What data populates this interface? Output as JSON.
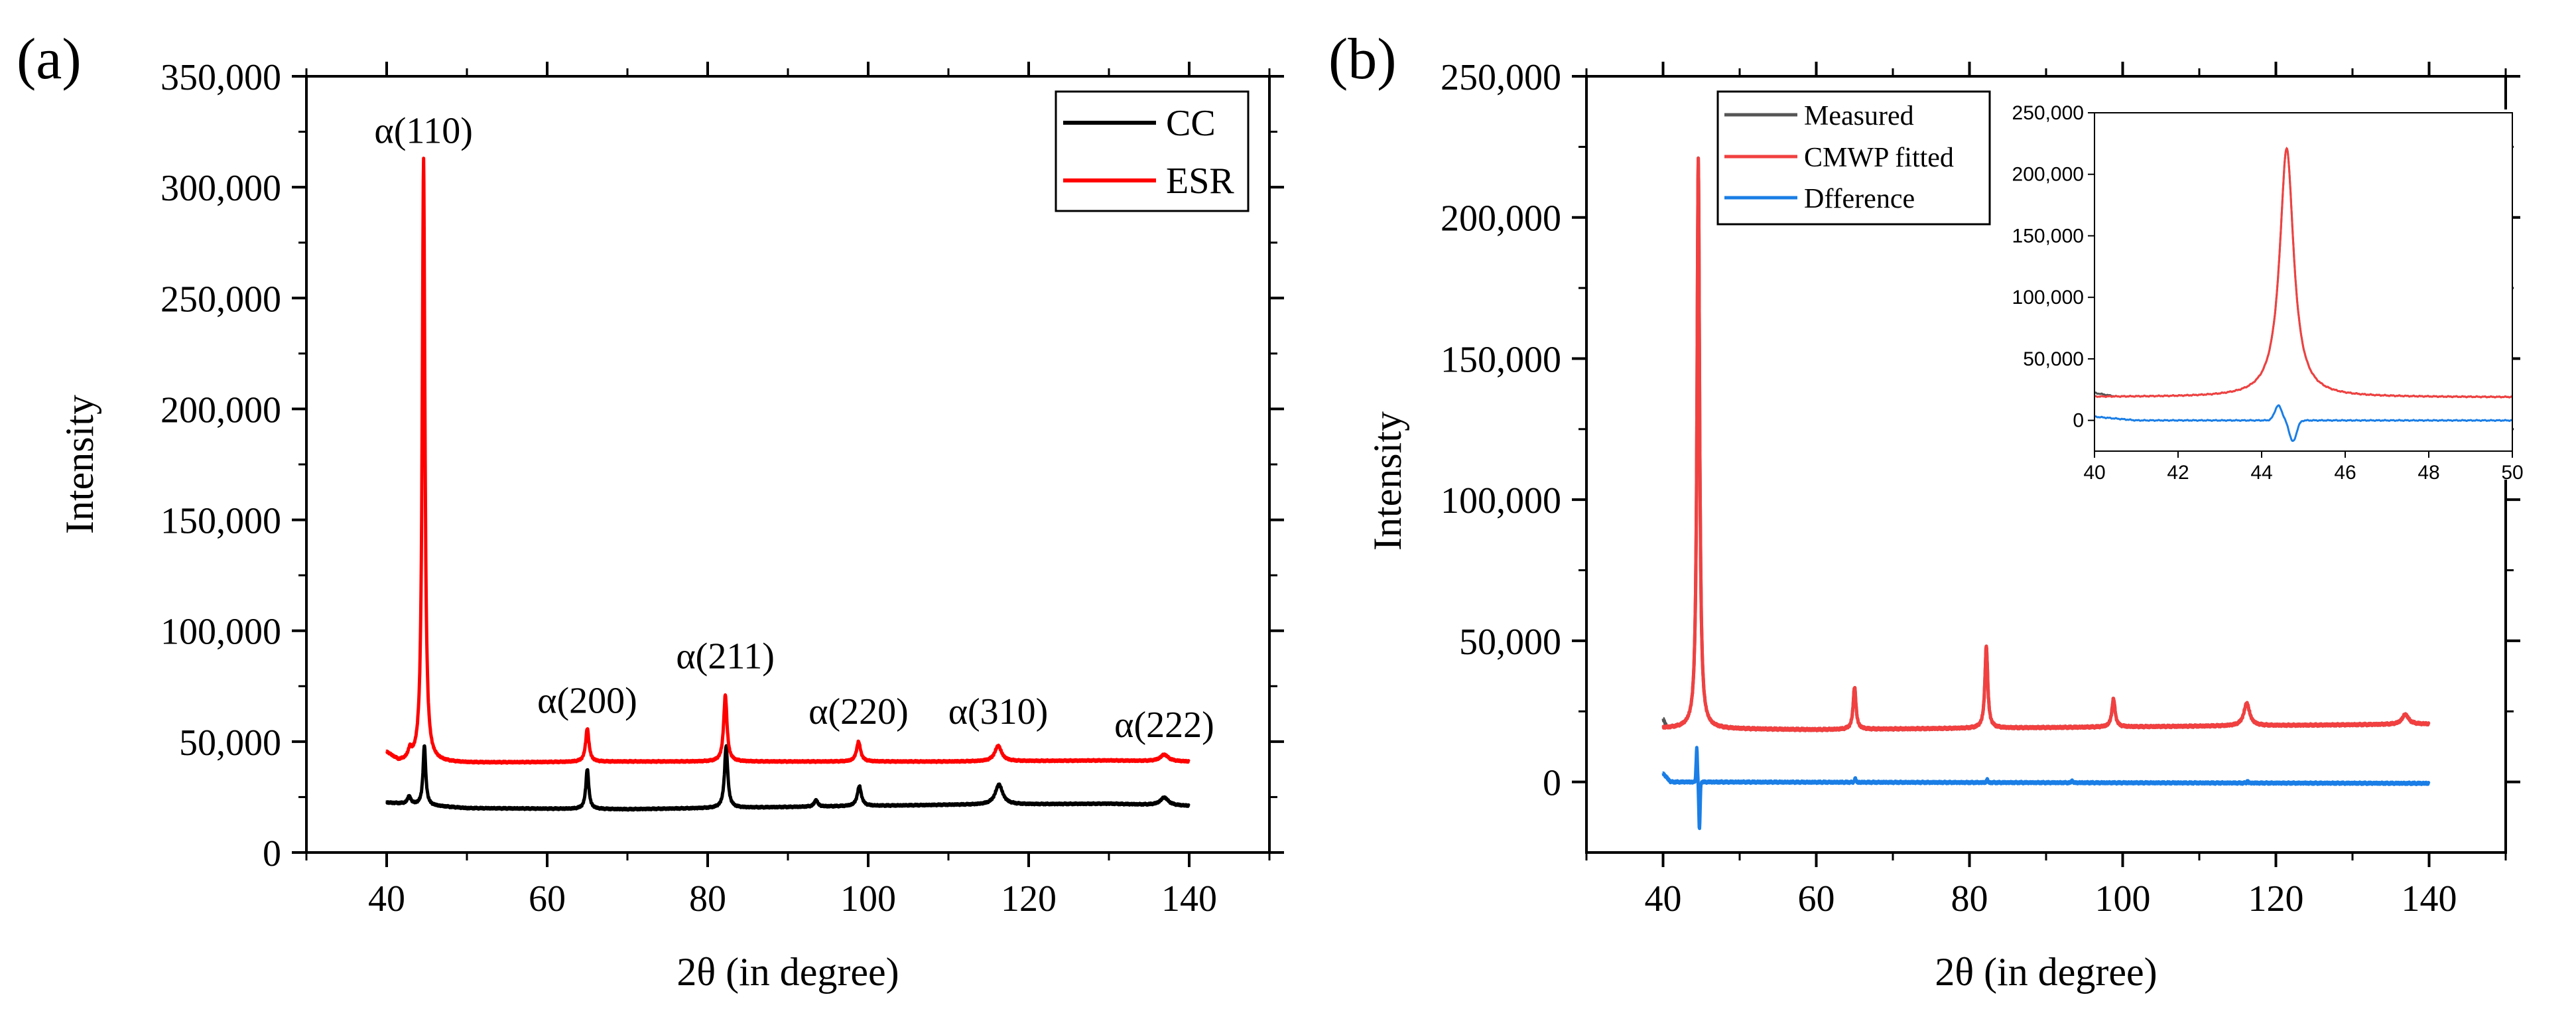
{
  "chart_data": [
    {
      "panel": "(a)",
      "type": "line",
      "title": "",
      "xlabel": "2θ (in degree)",
      "ylabel": "Intensity",
      "xlim": [
        30,
        150
      ],
      "ylim": [
        0,
        350000
      ],
      "xticks": [
        40,
        60,
        80,
        100,
        120,
        140
      ],
      "yticks": [
        0,
        50000,
        100000,
        150000,
        200000,
        250000,
        300000,
        350000
      ],
      "xtick_labels": [
        "40",
        "60",
        "80",
        "100",
        "120",
        "140"
      ],
      "ytick_labels": [
        "0",
        "50,000",
        "100,000",
        "150,000",
        "200,000",
        "250,000",
        "300,000",
        "350,000"
      ],
      "legend_position": "top-right",
      "series": [
        {
          "name": "CC",
          "color": "#000000",
          "baseline": [
            [
              40,
              22500
            ],
            [
              50,
              20000
            ],
            [
              70,
              19500
            ],
            [
              90,
              20500
            ],
            [
              110,
              21500
            ],
            [
              130,
              22000
            ],
            [
              140,
              21000
            ]
          ],
          "peaks": [
            [
              42.8,
              3500,
              0.25
            ],
            [
              44.7,
              27000,
              0.2
            ],
            [
              65.0,
              18000,
              0.22
            ],
            [
              82.3,
              28000,
              0.24
            ],
            [
              93.5,
              3000,
              0.25
            ],
            [
              98.9,
              9000,
              0.3
            ],
            [
              116.3,
              9000,
              0.55
            ],
            [
              136.9,
              3500,
              0.6
            ]
          ]
        },
        {
          "name": "ESR",
          "color": "#ff0000",
          "baseline": [
            [
              40,
              45000
            ],
            [
              41.5,
              41000
            ],
            [
              50,
              40500
            ],
            [
              70,
              41000
            ],
            [
              90,
              41000
            ],
            [
              110,
              41000
            ],
            [
              130,
              41500
            ],
            [
              140,
              41000
            ]
          ],
          "peaks": [
            [
              42.9,
              4000,
              0.25
            ],
            [
              44.6,
              272000,
              0.2
            ],
            [
              65.0,
              15000,
              0.25
            ],
            [
              82.2,
              30000,
              0.25
            ],
            [
              98.8,
              9000,
              0.3
            ],
            [
              116.2,
              7000,
              0.5
            ],
            [
              136.9,
              3000,
              0.6
            ]
          ]
        }
      ],
      "annotations": [
        {
          "text": "α(110)",
          "x": 44.6,
          "y": 320000
        },
        {
          "text": "α(200)",
          "x": 65.0,
          "y": 63000
        },
        {
          "text": "α(211)",
          "x": 82.2,
          "y": 83000
        },
        {
          "text": "α(220)",
          "x": 98.8,
          "y": 58000
        },
        {
          "text": "α(310)",
          "x": 116.2,
          "y": 58000
        },
        {
          "text": "α(222)",
          "x": 136.9,
          "y": 52000
        }
      ]
    },
    {
      "panel": "(b)",
      "type": "line",
      "title": "",
      "xlabel": "2θ (in degree)",
      "ylabel": "Intensity",
      "xlim": [
        30,
        150
      ],
      "ylim": [
        -25000,
        250000
      ],
      "xticks": [
        40,
        60,
        80,
        100,
        120,
        140
      ],
      "yticks": [
        0,
        50000,
        100000,
        150000,
        200000,
        250000
      ],
      "xtick_labels": [
        "40",
        "60",
        "80",
        "100",
        "120",
        "140"
      ],
      "ytick_labels": [
        "0",
        "50,000",
        "100,000",
        "150,000",
        "200,000",
        "250,000"
      ],
      "legend_position": "top-left",
      "series": [
        {
          "name": "Measured",
          "color": "#555555",
          "baseline": [
            [
              40,
              22000
            ],
            [
              40.5,
              19000
            ],
            [
              60,
              18500
            ],
            [
              80,
              19000
            ],
            [
              100,
              19500
            ],
            [
              120,
              20000
            ],
            [
              140,
              20500
            ]
          ],
          "peaks": [
            [
              44.6,
              202000,
              0.2
            ],
            [
              65.0,
              15000,
              0.22
            ],
            [
              82.2,
              29000,
              0.22
            ],
            [
              98.8,
              10000,
              0.25
            ],
            [
              116.2,
              8000,
              0.45
            ],
            [
              136.9,
              3500,
              0.5
            ]
          ]
        },
        {
          "name": "CMWP fitted",
          "color": "#f24040",
          "baseline": [
            [
              40,
              19000
            ],
            [
              60,
              18500
            ],
            [
              80,
              19000
            ],
            [
              100,
              19500
            ],
            [
              120,
              20000
            ],
            [
              140,
              20500
            ]
          ],
          "peaks": [
            [
              44.6,
              202000,
              0.2
            ],
            [
              65.0,
              15000,
              0.22
            ],
            [
              82.2,
              29000,
              0.22
            ],
            [
              98.8,
              10000,
              0.25
            ],
            [
              116.2,
              8000,
              0.45
            ],
            [
              136.9,
              3500,
              0.5
            ]
          ]
        },
        {
          "name": "Dfference",
          "color": "#1a7ee6",
          "baseline": [
            [
              40,
              3000
            ],
            [
              41,
              0
            ],
            [
              140,
              -500
            ]
          ],
          "glitches": [
            [
              44.4,
              12000
            ],
            [
              44.75,
              -17000
            ],
            [
              65.1,
              1500
            ],
            [
              82.3,
              1200
            ],
            [
              93.4,
              800
            ],
            [
              116.3,
              700
            ]
          ]
        }
      ],
      "inset": {
        "xlim": [
          40,
          50
        ],
        "ylim": [
          -25000,
          250000
        ],
        "xticks": [
          40,
          42,
          44,
          46,
          48,
          50
        ],
        "yticks": [
          0,
          50000,
          100000,
          150000,
          200000,
          250000
        ],
        "xtick_labels": [
          "40",
          "42",
          "44",
          "46",
          "48",
          "50"
        ],
        "ytick_labels": [
          "0",
          "50,000",
          "100,000",
          "150,000",
          "200,000",
          "250,000"
        ]
      }
    }
  ]
}
